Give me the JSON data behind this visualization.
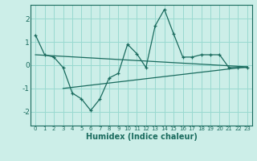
{
  "xlabel": "Humidex (Indice chaleur)",
  "ylabel": "",
  "bg_color": "#cceee8",
  "grid_color": "#99d9d0",
  "line_color": "#1a6b5e",
  "xlim": [
    -0.5,
    23.5
  ],
  "ylim": [
    -2.6,
    2.6
  ],
  "x_ticks": [
    0,
    1,
    2,
    3,
    4,
    5,
    6,
    7,
    8,
    9,
    10,
    11,
    12,
    13,
    14,
    15,
    16,
    17,
    18,
    19,
    20,
    21,
    22,
    23
  ],
  "y_ticks": [
    -2,
    -1,
    0,
    1,
    2
  ],
  "series1_x": [
    0,
    1,
    2,
    3,
    4,
    5,
    6,
    7,
    8,
    9,
    10,
    11,
    12,
    13,
    14,
    15,
    16,
    17,
    18,
    19,
    20,
    21,
    22,
    23
  ],
  "series1_y": [
    1.3,
    0.45,
    0.35,
    -0.1,
    -1.2,
    -1.45,
    -1.95,
    -1.45,
    -0.55,
    -0.35,
    0.9,
    0.5,
    -0.1,
    1.7,
    2.4,
    1.35,
    0.35,
    0.35,
    0.45,
    0.45,
    0.45,
    -0.1,
    -0.1,
    -0.1
  ],
  "series2_x": [
    0,
    23
  ],
  "series2_y": [
    0.45,
    -0.07
  ],
  "series3_x": [
    3,
    23
  ],
  "series3_y": [
    -1.0,
    -0.07
  ]
}
